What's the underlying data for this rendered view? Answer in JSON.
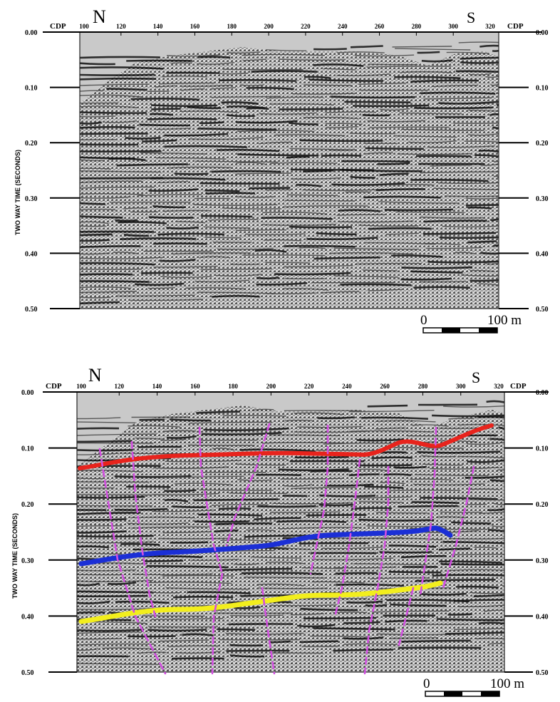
{
  "panels": [
    {
      "id": "uninterpreted",
      "north_label": "N",
      "south_label": "S",
      "cdp_label": "CDP",
      "cdp_ticks": [
        "100",
        "120",
        "140",
        "160",
        "180",
        "200",
        "220",
        "240",
        "260",
        "280",
        "300",
        "320"
      ],
      "time_ticks": [
        "0.00",
        "0.10",
        "0.20",
        "0.30",
        "0.40",
        "0.50"
      ],
      "y_axis_label": "TWO WAY TIME (SECONDS)",
      "scale_bar": {
        "start": "0",
        "end": "100 m"
      }
    },
    {
      "id": "interpreted",
      "north_label": "N",
      "south_label": "S",
      "cdp_label": "CDP",
      "cdp_ticks": [
        "100",
        "120",
        "140",
        "160",
        "180",
        "200",
        "220",
        "240",
        "260",
        "280",
        "300",
        "320"
      ],
      "time_ticks": [
        "0.00",
        "0.10",
        "0.20",
        "0.30",
        "0.40",
        "0.50"
      ],
      "y_axis_label": "TWO WAY TIME (SECONDS)",
      "scale_bar": {
        "start": "0",
        "end": "100 m"
      },
      "horizon_colors": {
        "upper": "#e8231c",
        "middle": "#1b2fd6",
        "lower": "#f2ee1d"
      },
      "fault_color": "#d24fe0"
    }
  ]
}
